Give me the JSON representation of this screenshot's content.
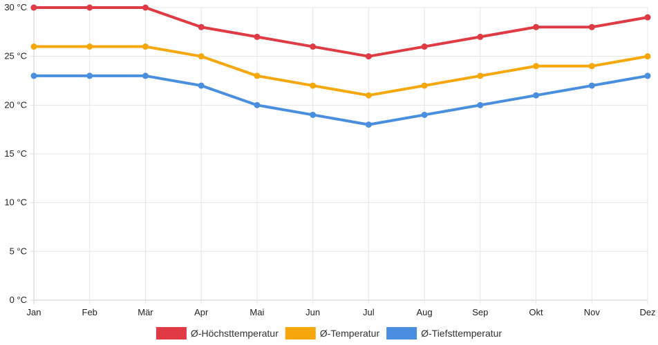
{
  "chart_data": {
    "type": "line",
    "title": "",
    "xlabel": "",
    "ylabel": "",
    "categories": [
      "Jan",
      "Feb",
      "Mär",
      "Apr",
      "Mai",
      "Jun",
      "Jul",
      "Aug",
      "Sep",
      "Okt",
      "Nov",
      "Dez"
    ],
    "ylim": [
      0,
      30
    ],
    "y_ticks": [
      0,
      5,
      10,
      15,
      20,
      25,
      30
    ],
    "y_tick_labels": [
      "0 °C",
      "5 °C",
      "10 °C",
      "15 °C",
      "20 °C",
      "25 °C",
      "30 °C"
    ],
    "grid": true,
    "legend_position": "bottom",
    "series": [
      {
        "name": "Ø-Höchsttemperatur",
        "color": "#e03a45",
        "values": [
          30,
          30,
          30,
          28,
          27,
          26,
          25,
          26,
          27,
          28,
          28,
          29
        ]
      },
      {
        "name": "Ø-Temperatur",
        "color": "#f5a70c",
        "values": [
          26,
          26,
          26,
          25,
          23,
          22,
          21,
          22,
          23,
          24,
          24,
          25
        ]
      },
      {
        "name": "Ø-Tiefsttemperatur",
        "color": "#4a8fdf",
        "values": [
          23,
          23,
          23,
          22,
          20,
          19,
          18,
          19,
          20,
          21,
          22,
          23
        ]
      }
    ]
  }
}
